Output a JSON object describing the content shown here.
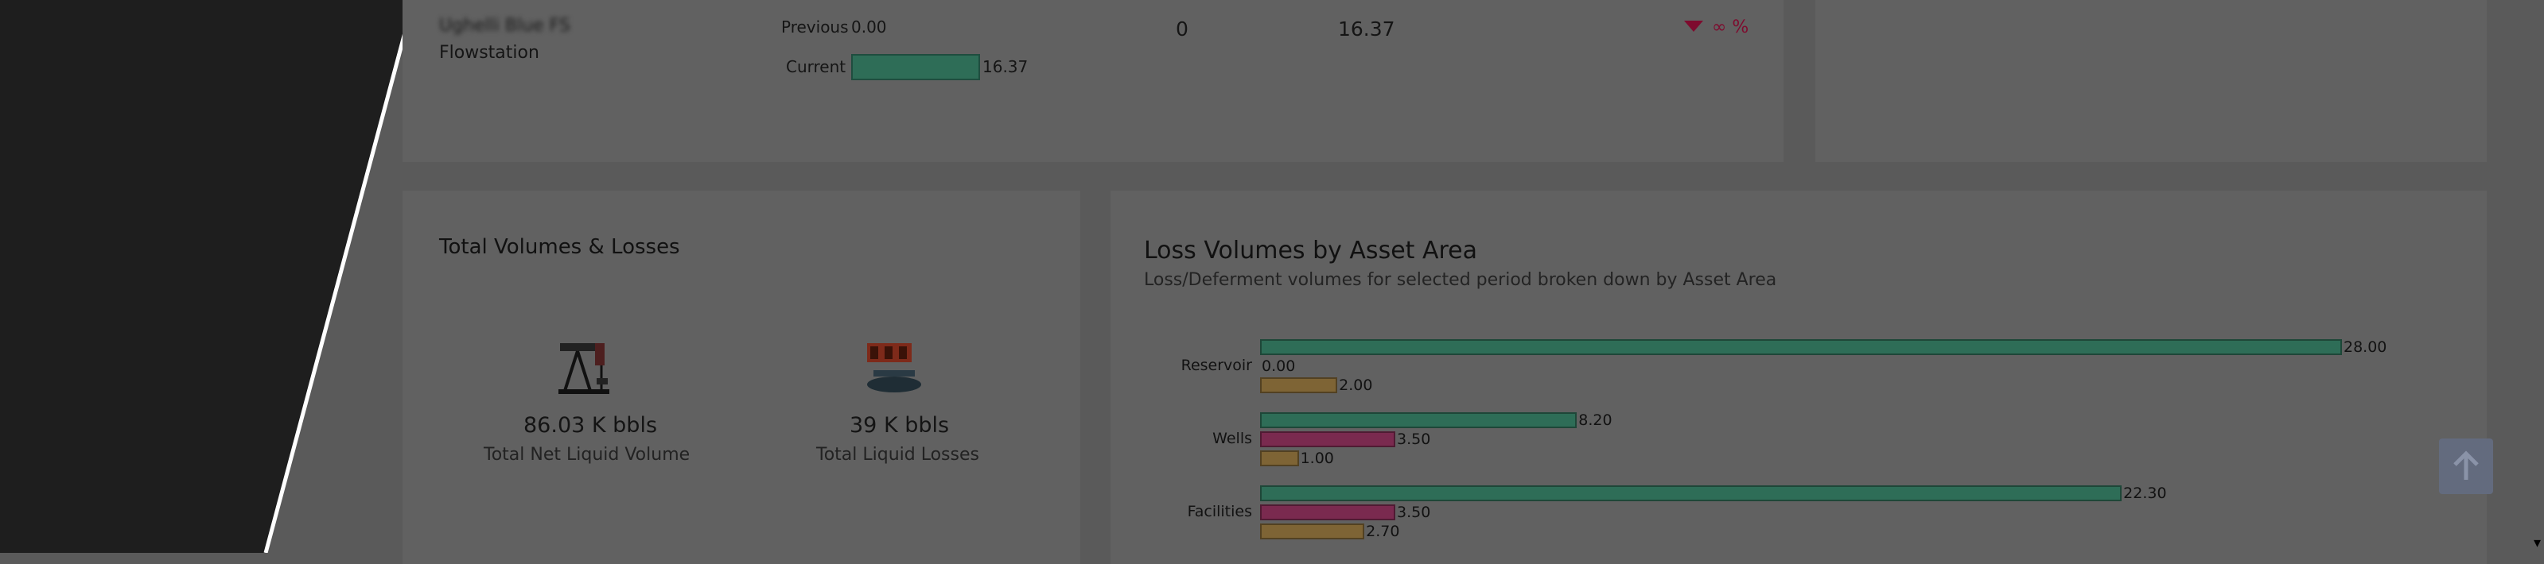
{
  "top_card": {
    "name_blurred": "Ughelli Blue FS",
    "type_label": "Flowstation",
    "previous_label": "Previous",
    "previous_value": "0.00",
    "current_label": "Current",
    "current_value": "16.37",
    "col_a": "0",
    "col_b": "16.37",
    "change": "∞ %"
  },
  "totals": {
    "title": "Total Volumes & Losses",
    "net_value": "86.03 K bbls",
    "net_label": "Total Net Liquid Volume",
    "loss_value": "39 K bbls",
    "loss_label": "Total Liquid Losses",
    "net_icon": "pump-jack-icon",
    "loss_icon": "pipeline-leak-icon"
  },
  "loss_chart": {
    "title": "Loss Volumes by Asset Area",
    "subtitle": "Loss/Deferment volumes for selected period broken down by Asset Area"
  },
  "chart_data": {
    "type": "bar",
    "orientation": "horizontal",
    "categories": [
      "Reservoir",
      "Wells",
      "Facilities"
    ],
    "series": [
      {
        "color": "#2e6d57",
        "values": [
          28.0,
          8.2,
          22.3
        ]
      },
      {
        "color": "#7a2a4f",
        "values": [
          0.0,
          3.5,
          3.5
        ]
      },
      {
        "color": "#7e6435",
        "values": [
          2.0,
          1.0,
          2.7
        ]
      }
    ],
    "labels": [
      [
        "28.00",
        "0.00",
        "2.00"
      ],
      [
        "8.20",
        "3.50",
        "1.00"
      ],
      [
        "22.30",
        "3.50",
        "2.70"
      ]
    ]
  },
  "scroll_caret": "▾"
}
